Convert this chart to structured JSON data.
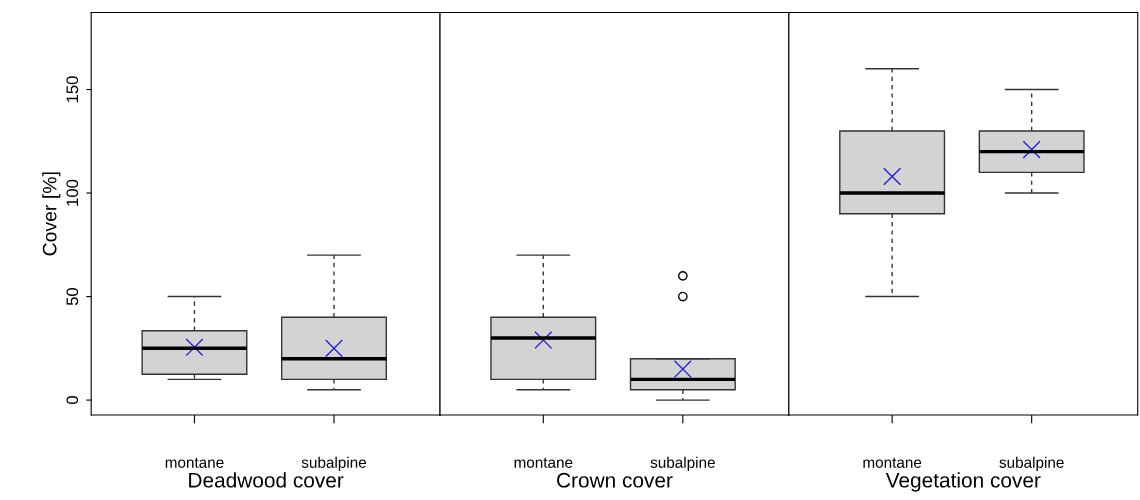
{
  "chart_data": [
    {
      "type": "box",
      "xlabel": "Deadwood cover",
      "ylabel": "Cover [%]",
      "categories": [
        "montane",
        "subalpine"
      ],
      "color": "#d3d3d3",
      "ylim": [
        -7.2,
        187.2
      ],
      "yticks": [
        0,
        50,
        100,
        150
      ],
      "boxes": [
        {
          "low": 10,
          "q1": 12.5,
          "median": 25,
          "q3": 33.5,
          "high": 50,
          "mean": 25.5
        },
        {
          "low": 5,
          "q1": 10,
          "median": 20,
          "q3": 40,
          "high": 70,
          "mean": 25
        }
      ]
    },
    {
      "type": "box",
      "xlabel": "Crown cover",
      "categories": [
        "montane",
        "subalpine"
      ],
      "color": "#d3d3d3",
      "ylim": [
        -7.2,
        187.2
      ],
      "tick_labels": "x",
      "boxes": [
        {
          "low": 5,
          "q1": 10,
          "median": 30,
          "q3": 40,
          "high": 70,
          "mean": 29
        },
        {
          "low": 0,
          "q1": 5,
          "median": 10,
          "q3": 20,
          "high": 20,
          "mean": 15,
          "outliers": [
            50,
            60
          ]
        }
      ]
    },
    {
      "type": "box",
      "xlabel": "Vegetation cover",
      "categories": [
        "montane",
        "subalpine"
      ],
      "color": "#d3d3d3",
      "ylim": [
        -7.2,
        187.2
      ],
      "tick_labels": "x",
      "boxes": [
        {
          "low": 50,
          "q1": 90,
          "median": 100,
          "q3": 130,
          "high": 160,
          "mean": 108
        },
        {
          "low": 100,
          "q1": 110,
          "median": 120,
          "q3": 130,
          "high": 150,
          "mean": 121
        }
      ]
    }
  ]
}
